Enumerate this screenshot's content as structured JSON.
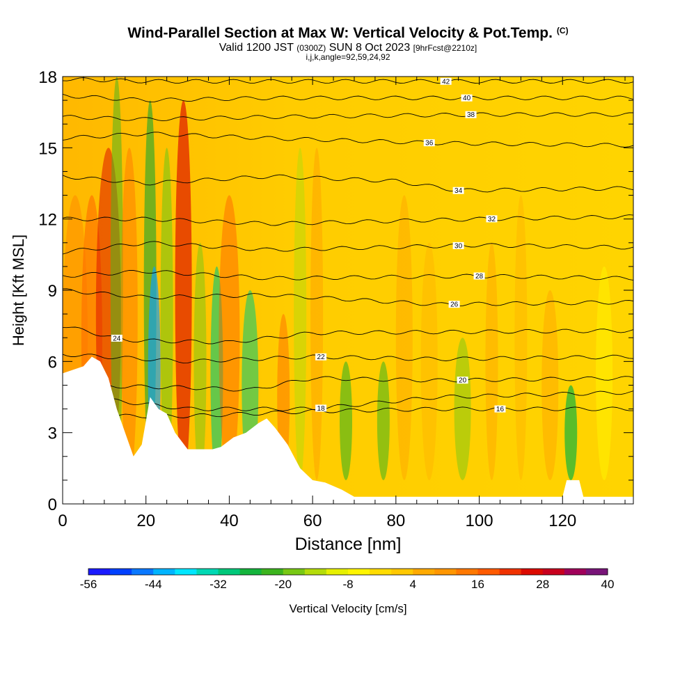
{
  "header": {
    "title": "Wind-Parallel Section at Max W: Vertical Velocity & Pot.Temp.",
    "copyright": "(C)",
    "valid_prefix": "Valid 1200 JST",
    "valid_utc": "(0300Z)",
    "valid_date": "SUN 8 Oct 2023",
    "forecast": "[9hrFcst@2210z]",
    "grid_info": "i,j,k,angle=92,59,24,92"
  },
  "chart_data": {
    "type": "heatmap",
    "title": "Wind-Parallel Section at Max W: Vertical Velocity & Pot.Temp.",
    "xlabel": "Distance [nm]",
    "ylabel": "Height [Kft MSL]",
    "xlim": [
      0,
      137
    ],
    "ylim": [
      0,
      18
    ],
    "x_ticks": [
      "0",
      "20",
      "40",
      "60",
      "80",
      "100",
      "120"
    ],
    "x_tick_values": [
      0,
      20,
      40,
      60,
      80,
      100,
      120
    ],
    "y_ticks": [
      "0",
      "3",
      "6",
      "9",
      "12",
      "15",
      "18"
    ],
    "y_tick_values": [
      0,
      3,
      6,
      9,
      12,
      15,
      18
    ],
    "colorbar": {
      "label": "Vertical Velocity [cm/s]",
      "tick_labels": [
        "-56",
        "-44",
        "-32",
        "-20",
        "-8",
        "4",
        "16",
        "28",
        "40"
      ],
      "min": -56,
      "max": 40,
      "colors": [
        "#1a1aff",
        "#0040ff",
        "#0a78ff",
        "#00b4ff",
        "#00e6ff",
        "#00d8b4",
        "#00c87a",
        "#14b43c",
        "#3cb41e",
        "#78c814",
        "#b4dc0a",
        "#e6f000",
        "#fff500",
        "#ffdc00",
        "#ffc800",
        "#ffaa00",
        "#ff9600",
        "#ff7800",
        "#ff5a00",
        "#f03200",
        "#dc0a00",
        "#c8001e",
        "#a0005a",
        "#781478"
      ]
    },
    "theta_contours": [
      {
        "label": "16",
        "y_at": [
          [
            0,
            3.7
          ],
          [
            30,
            3.7
          ],
          [
            60,
            3.9
          ],
          [
            90,
            4.0
          ],
          [
            137,
            4.0
          ]
        ],
        "label_x": 105
      },
      {
        "label": "18",
        "y_at": [
          [
            0,
            4.6
          ],
          [
            30,
            4.0
          ],
          [
            60,
            4.0
          ],
          [
            90,
            4.5
          ],
          [
            137,
            4.7
          ]
        ],
        "label_x": 62
      },
      {
        "label": "20",
        "y_at": [
          [
            0,
            5.0
          ],
          [
            30,
            4.9
          ],
          [
            45,
            4.8
          ],
          [
            60,
            5.3
          ],
          [
            90,
            5.2
          ],
          [
            137,
            5.3
          ]
        ],
        "label_x": 96
      },
      {
        "label": "22",
        "y_at": [
          [
            0,
            6.3
          ],
          [
            30,
            6.0
          ],
          [
            60,
            6.2
          ],
          [
            90,
            6.1
          ],
          [
            137,
            6.2
          ]
        ],
        "label_x": 62
      },
      {
        "label": "24",
        "y_at": [
          [
            0,
            7.5
          ],
          [
            15,
            6.9
          ],
          [
            40,
            6.8
          ],
          [
            60,
            7.2
          ],
          [
            137,
            7.3
          ]
        ],
        "label_x": 13
      },
      {
        "label": "26",
        "y_at": [
          [
            0,
            9.0
          ],
          [
            20,
            8.7
          ],
          [
            50,
            8.8
          ],
          [
            90,
            8.4
          ],
          [
            137,
            8.5
          ]
        ],
        "label_x": 94
      },
      {
        "label": "28",
        "y_at": [
          [
            0,
            9.6
          ],
          [
            20,
            9.8
          ],
          [
            50,
            9.5
          ],
          [
            100,
            9.6
          ],
          [
            137,
            9.5
          ]
        ],
        "label_x": 100
      },
      {
        "label": "30",
        "y_at": [
          [
            0,
            10.6
          ],
          [
            20,
            11.0
          ],
          [
            50,
            10.7
          ],
          [
            100,
            10.9
          ],
          [
            137,
            10.8
          ]
        ],
        "label_x": 95
      },
      {
        "label": "32",
        "y_at": [
          [
            0,
            12.0
          ],
          [
            20,
            12.0
          ],
          [
            50,
            11.8
          ],
          [
            100,
            12.0
          ],
          [
            137,
            12.1
          ]
        ],
        "label_x": 103
      },
      {
        "label": "34",
        "y_at": [
          [
            0,
            13.8
          ],
          [
            20,
            13.5
          ],
          [
            50,
            13.8
          ],
          [
            80,
            13.6
          ],
          [
            95,
            13.2
          ],
          [
            137,
            13.3
          ]
        ],
        "label_x": 95
      },
      {
        "label": "36",
        "y_at": [
          [
            0,
            15.4
          ],
          [
            20,
            15.6
          ],
          [
            50,
            15.4
          ],
          [
            90,
            15.2
          ],
          [
            137,
            15.1
          ]
        ],
        "label_x": 88
      },
      {
        "label": "38",
        "y_at": [
          [
            0,
            16.3
          ],
          [
            20,
            16.2
          ],
          [
            50,
            16.3
          ],
          [
            100,
            16.4
          ],
          [
            137,
            16.4
          ]
        ],
        "label_x": 98
      },
      {
        "label": "40",
        "y_at": [
          [
            0,
            17.2
          ],
          [
            20,
            17.0
          ],
          [
            50,
            17.1
          ],
          [
            100,
            17.1
          ],
          [
            137,
            17.1
          ]
        ],
        "label_x": 97
      },
      {
        "label": "42",
        "y_at": [
          [
            0,
            17.9
          ],
          [
            20,
            17.8
          ],
          [
            50,
            17.8
          ],
          [
            100,
            17.8
          ],
          [
            137,
            17.8
          ]
        ],
        "label_x": 92
      }
    ],
    "terrain_profile": [
      [
        0,
        5.5
      ],
      [
        5,
        5.8
      ],
      [
        7,
        6.2
      ],
      [
        9,
        6.0
      ],
      [
        11,
        5.3
      ],
      [
        13,
        4.0
      ],
      [
        15,
        3.0
      ],
      [
        17,
        2.0
      ],
      [
        19,
        2.5
      ],
      [
        21,
        4.5
      ],
      [
        23,
        4.0
      ],
      [
        25,
        3.8
      ],
      [
        27,
        3.0
      ],
      [
        30,
        2.3
      ],
      [
        33,
        2.3
      ],
      [
        36,
        2.3
      ],
      [
        38,
        2.4
      ],
      [
        41,
        2.8
      ],
      [
        44,
        3.0
      ],
      [
        47,
        3.4
      ],
      [
        49,
        3.6
      ],
      [
        51,
        3.2
      ],
      [
        54,
        2.5
      ],
      [
        57,
        1.5
      ],
      [
        60,
        1.0
      ],
      [
        63,
        0.9
      ],
      [
        67,
        0.6
      ],
      [
        70,
        0.3
      ],
      [
        120,
        0.3
      ],
      [
        121,
        1.0
      ],
      [
        124,
        1.0
      ],
      [
        125,
        0.3
      ],
      [
        137,
        0.3
      ]
    ]
  }
}
